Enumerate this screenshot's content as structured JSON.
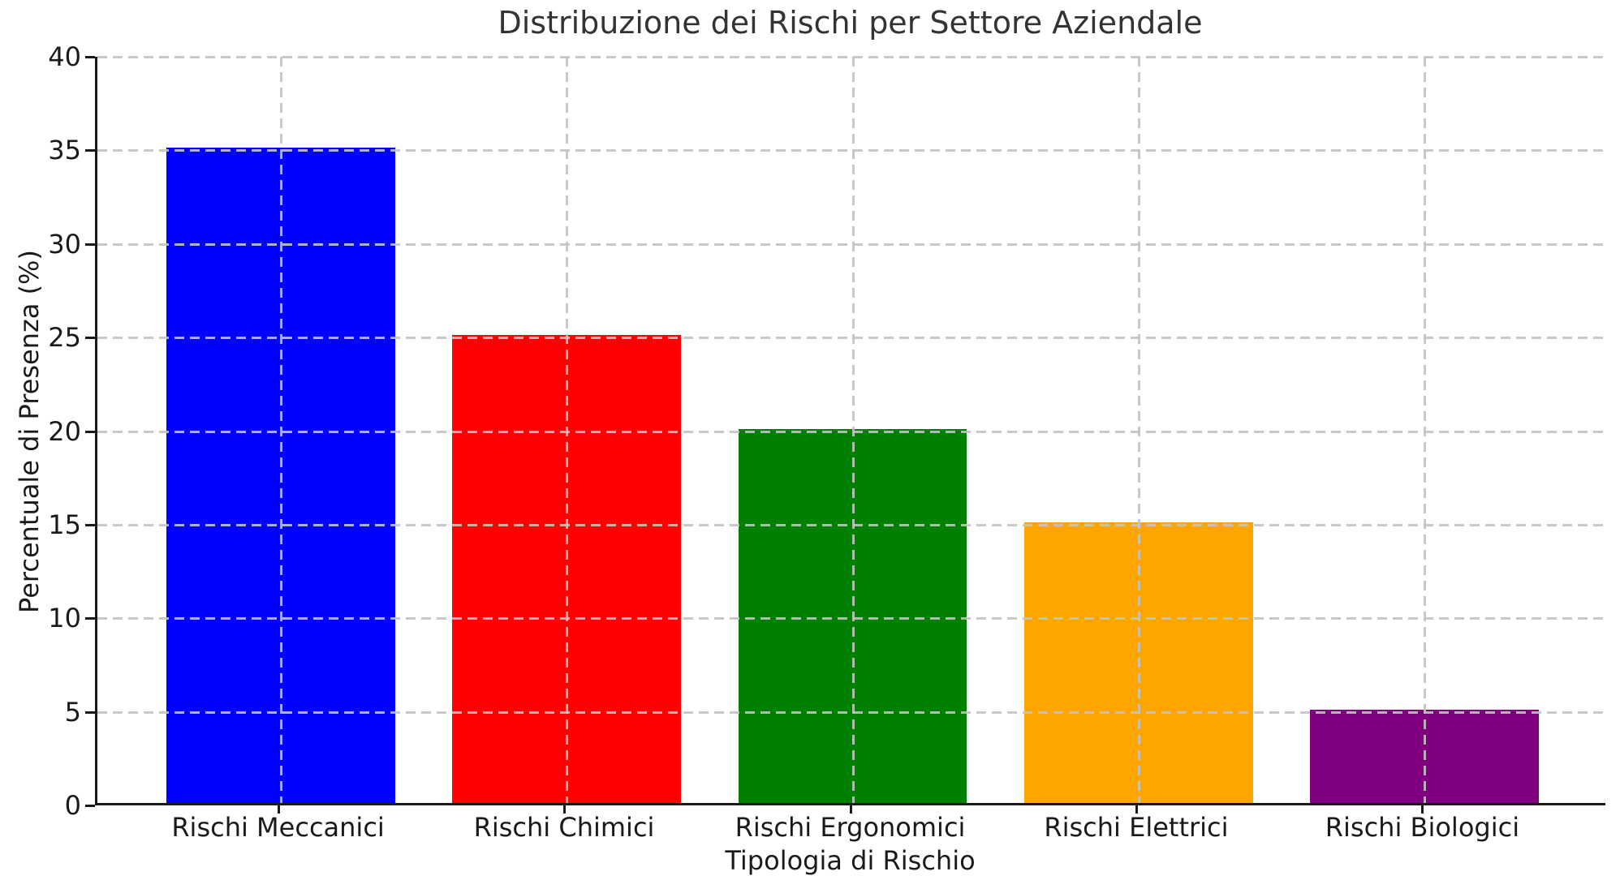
{
  "chart_data": {
    "type": "bar",
    "title": "Distribuzione dei Rischi per Settore Aziendale",
    "xlabel": "Tipologia di Rischio",
    "ylabel": "Percentuale di Presenza (%)",
    "categories": [
      "Rischi Meccanici",
      "Rischi Chimici",
      "Rischi Ergonomici",
      "Rischi Elettrici",
      "Rischi Biologici"
    ],
    "values": [
      35,
      25,
      20,
      15,
      5
    ],
    "bar_colors": [
      "#0000ff",
      "#ff0000",
      "#008000",
      "#ffa500",
      "#800080"
    ],
    "ylim": [
      0,
      40
    ],
    "yticks": [
      0,
      5,
      10,
      15,
      20,
      25,
      30,
      35,
      40
    ],
    "grid": "dashed gridlines on both axes, drawn above bars",
    "grid_color": "#c3c3c3",
    "axis_color": "#1a1a1a",
    "title_color": "#333333",
    "background": "#ffffff",
    "legend": "none"
  }
}
